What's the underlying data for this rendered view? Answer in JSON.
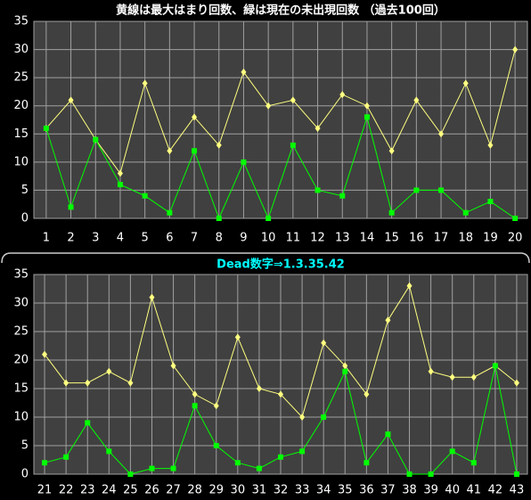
{
  "chart_data": [
    {
      "type": "line",
      "title": "黄線は最大はまり回数、緑は現在の未出現回数 （過去100回）",
      "title_color": "#ffffff",
      "categories": [
        "1",
        "2",
        "3",
        "4",
        "5",
        "6",
        "7",
        "8",
        "9",
        "10",
        "11",
        "12",
        "13",
        "14",
        "15",
        "16",
        "17",
        "18",
        "19",
        "20"
      ],
      "series": [
        {
          "color": "#ffff80",
          "marker": "diamond",
          "values": [
            16,
            21,
            14,
            8,
            24,
            12,
            18,
            13,
            26,
            20,
            21,
            16,
            22,
            20,
            12,
            21,
            15,
            24,
            13,
            30
          ]
        },
        {
          "color": "#00ff00",
          "marker": "square",
          "values": [
            16,
            2,
            14,
            6,
            4,
            1,
            12,
            0,
            10,
            0,
            13,
            5,
            4,
            18,
            1,
            5,
            5,
            1,
            3,
            0
          ]
        }
      ],
      "ylim": [
        0,
        35
      ],
      "yticks": [
        0,
        5,
        10,
        15,
        20,
        25,
        30,
        35
      ],
      "grid": true
    },
    {
      "type": "line",
      "title": "Dead数字⇒1.3.35.42",
      "title_color": "#00ffff",
      "categories": [
        "21",
        "22",
        "23",
        "24",
        "25",
        "26",
        "27",
        "28",
        "29",
        "30",
        "31",
        "32",
        "33",
        "34",
        "35",
        "36",
        "37",
        "38",
        "39",
        "40",
        "41",
        "42",
        "43"
      ],
      "series": [
        {
          "color": "#ffff80",
          "marker": "diamond",
          "values": [
            21,
            16,
            16,
            18,
            16,
            31,
            19,
            14,
            12,
            24,
            15,
            14,
            10,
            23,
            19,
            14,
            27,
            33,
            18,
            17,
            17,
            19,
            16
          ]
        },
        {
          "color": "#00ff00",
          "marker": "square",
          "values": [
            2,
            3,
            9,
            4,
            0,
            1,
            1,
            12,
            5,
            2,
            1,
            3,
            4,
            10,
            18,
            2,
            7,
            0,
            0,
            4,
            2,
            19,
            0
          ]
        }
      ],
      "ylim": [
        0,
        35
      ],
      "yticks": [
        0,
        5,
        10,
        15,
        20,
        25,
        30,
        35
      ],
      "grid": true
    }
  ]
}
